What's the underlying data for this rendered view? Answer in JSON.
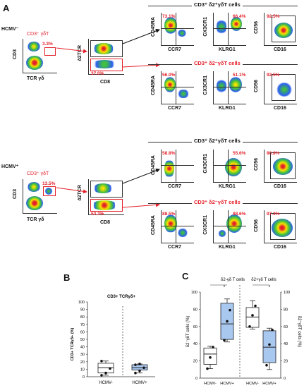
{
  "panels": {
    "a": "A",
    "b": "B",
    "c": "C"
  },
  "groups": {
    "neg": "HCMV⁻",
    "pos": "HCMV⁺"
  },
  "gating": {
    "cd3_tcr_gate": "CD3⁺ γδT",
    "x_tcr": "TCR γδ",
    "y_cd3": "CD3",
    "y_d2tcr": "δ2TCR",
    "x_cd8": "CD8",
    "neg_gd": "3.3%",
    "neg_cd8": "37.0%",
    "pos_gd": "13.5%",
    "pos_cd8": "53.3%"
  },
  "subsets": {
    "d2pos": "CD3⁺ δ2⁺γδT cells",
    "d2neg": "CD3⁺ δ2⁻γδT cells"
  },
  "axes": {
    "cd45ra": "CD45RA",
    "ccr7": "CCR7",
    "cx3cr1": "CX3CR1",
    "klrg1": "KLRG1",
    "cd56": "CD56",
    "cd16": "CD16"
  },
  "pcts": {
    "neg_pos_1": "73.1%",
    "neg_pos_2": "66.4%",
    "neg_pos_3": "92.5%",
    "neg_neg_1": "56.0%",
    "neg_neg_2": "51.1%",
    "neg_neg_3": "92.5%",
    "pos_pos_1": "58.8%",
    "pos_pos_2": "55.6%",
    "pos_pos_3": "80.8%",
    "pos_neg_1": "88.5%",
    "pos_neg_2": "88.6%",
    "pos_neg_3": "97.3%"
  },
  "chart_data": [
    {
      "type": "box",
      "title": "CD3+ TCRγδ+",
      "ylabel": "CD3+ TCRγδ+ (%)",
      "categories": [
        "HCMV-",
        "HCMV+"
      ],
      "ylim": [
        0,
        100
      ],
      "yticks": [
        0,
        10,
        20,
        30,
        40,
        50,
        60,
        70,
        80,
        90,
        100
      ],
      "series": [
        {
          "min": 2,
          "q1": 5,
          "median": 12,
          "q3": 18,
          "max": 21,
          "points": [
            2,
            5,
            11,
            21
          ]
        },
        {
          "min": 5,
          "q1": 9,
          "median": 12,
          "q3": 16,
          "max": 17,
          "points": [
            5,
            8,
            12,
            16,
            17
          ]
        }
      ]
    },
    {
      "type": "box",
      "ylabel_left": "δ2⁻γδT cells (%)",
      "ylabel_right": "δ2⁺γδT cells (%)",
      "annotations": [
        "δ2-γδ T cells",
        "δ2+γδ T cells",
        "*",
        "*"
      ],
      "categories": [
        "HCMV-",
        "HCMV+",
        "HCMV-",
        "HCMV+"
      ],
      "ylim": [
        0,
        100
      ],
      "yticks": [
        0,
        20,
        40,
        60,
        80,
        100
      ],
      "series": [
        {
          "min": 11,
          "q1": 16,
          "median": 28,
          "q3": 35,
          "max": 37,
          "points": [
            11,
            24,
            36
          ]
        },
        {
          "min": 42,
          "q1": 45,
          "median": 63,
          "q3": 87,
          "max": 92,
          "points": [
            44,
            66,
            79
          ]
        },
        {
          "min": 57,
          "q1": 59,
          "median": 71,
          "q3": 82,
          "max": 90,
          "points": [
            60,
            73,
            84
          ]
        },
        {
          "min": 10,
          "q1": 18,
          "median": 36,
          "q3": 55,
          "max": 58,
          "points": [
            15,
            39,
            56
          ]
        }
      ]
    }
  ]
}
